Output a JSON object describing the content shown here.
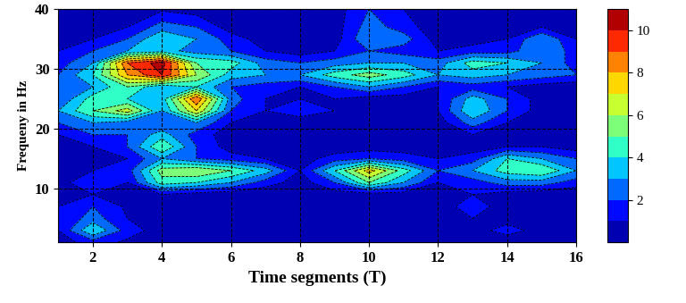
{
  "chart_data": {
    "type": "contour",
    "xlabel": "Time segments (T)",
    "ylabel": "Frequeny in Hz",
    "x": [
      1,
      2,
      3,
      4,
      5,
      6,
      7,
      8,
      9,
      10,
      11,
      12,
      13,
      14,
      15,
      16
    ],
    "y": [
      1,
      3,
      5,
      7,
      9,
      11,
      13,
      15,
      17,
      19,
      21,
      23,
      25,
      27,
      29,
      31,
      33,
      35,
      37,
      40
    ],
    "cells": [
      [
        0.5,
        1.5,
        0.8,
        0.3,
        0.2,
        0.2,
        0.1,
        0.1,
        0.2,
        0.2,
        0.2,
        0.2,
        0.2,
        0.2,
        0.2,
        0.1
      ],
      [
        1,
        4,
        1.5,
        0.5,
        0.5,
        0.3,
        0.2,
        0.2,
        0.3,
        0.3,
        0.3,
        0.5,
        0.5,
        1.5,
        0.5,
        0.2
      ],
      [
        1,
        2.5,
        1,
        0.5,
        0.3,
        0.2,
        0.2,
        0.2,
        0.3,
        0.3,
        0.3,
        0.5,
        1,
        0.5,
        0.3,
        0.2
      ],
      [
        1,
        2,
        0.8,
        0.3,
        0.2,
        0.2,
        0.2,
        0.2,
        0.3,
        0.3,
        0.3,
        0.5,
        1.5,
        0.5,
        0.3,
        0.2
      ],
      [
        0.5,
        1,
        0.5,
        1,
        0.5,
        0.3,
        0.2,
        0.2,
        0.5,
        0.5,
        0.5,
        0.5,
        1,
        0.5,
        0.3,
        0.2
      ],
      [
        0.5,
        2,
        1,
        4.5,
        4,
        3,
        1.5,
        0.5,
        2,
        5,
        3,
        1,
        1.5,
        2.5,
        2.5,
        1.5
      ],
      [
        0.3,
        1,
        1.5,
        5.5,
        6,
        5,
        3.5,
        1,
        4,
        7.5,
        4.5,
        2,
        3,
        4.5,
        5,
        3
      ],
      [
        0.3,
        0.5,
        1,
        3,
        2,
        1.5,
        1,
        0.5,
        1.5,
        2,
        1.5,
        1,
        1.5,
        4,
        3,
        2
      ],
      [
        0.5,
        1,
        2,
        5,
        2,
        0.5,
        0.3,
        0.3,
        0.3,
        0.5,
        0.5,
        0.3,
        0.5,
        1,
        1,
        0.5
      ],
      [
        1,
        2,
        2,
        3.5,
        1.5,
        0.5,
        0.3,
        0.3,
        0.3,
        0.5,
        0.5,
        0.5,
        1,
        0.5,
        0.5,
        0.3
      ],
      [
        2,
        3,
        2.5,
        2,
        3,
        1,
        0.5,
        0.5,
        0.5,
        0.5,
        0.5,
        0.5,
        2.5,
        1,
        0.5,
        0.3
      ],
      [
        3,
        5,
        6.5,
        3,
        7,
        2,
        1,
        1.5,
        1,
        0.5,
        0.5,
        1,
        4,
        2,
        0.5,
        0.3
      ],
      [
        2,
        4.5,
        4,
        3.5,
        9,
        2.5,
        1,
        1,
        1,
        0.5,
        0.5,
        1,
        3.5,
        2,
        0.5,
        0.3
      ],
      [
        2,
        3,
        5,
        3,
        4,
        2,
        1.5,
        1,
        2,
        3,
        2,
        1,
        1.5,
        1,
        0.5,
        0.3
      ],
      [
        2,
        4,
        8,
        10,
        6,
        3.5,
        3,
        3,
        4.5,
        5.5,
        4.5,
        3,
        3.5,
        3,
        2.5,
        2
      ],
      [
        1.5,
        3,
        9,
        10.5,
        5,
        4.5,
        2.5,
        2,
        2.5,
        3,
        3,
        2.5,
        4.5,
        4,
        3,
        1.5
      ],
      [
        1,
        2,
        3,
        3.5,
        2.5,
        2,
        1,
        0.5,
        1,
        2,
        1.5,
        1,
        1.5,
        1.5,
        3,
        1.5
      ],
      [
        0.5,
        1,
        2,
        4,
        3,
        1.5,
        0.5,
        0.3,
        0.5,
        3,
        2.5,
        0.5,
        0.5,
        1,
        3,
        1
      ],
      [
        0.3,
        0.5,
        1,
        2.5,
        2,
        0.5,
        0.3,
        0.3,
        0.5,
        2.5,
        1.5,
        0.3,
        0.3,
        0.5,
        1,
        0.5
      ],
      [
        0.2,
        0.3,
        0.5,
        0.8,
        0.5,
        0.3,
        0.2,
        0.2,
        0.5,
        2,
        1,
        0.2,
        0.2,
        0.3,
        0.5,
        0.3
      ]
    ],
    "xlim": [
      1,
      16
    ],
    "xticks": [
      2,
      4,
      6,
      8,
      10,
      12,
      14,
      16
    ],
    "ylim": [
      1,
      40
    ],
    "yticks": [
      10,
      20,
      30,
      40
    ],
    "colorbar_range": [
      0,
      11
    ],
    "colorbar_ticks": [
      2,
      4,
      6,
      8,
      10
    ],
    "grid": true
  }
}
